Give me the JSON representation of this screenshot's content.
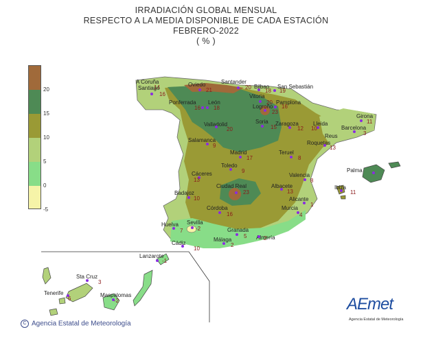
{
  "title": {
    "line1": "IRRADIACIÓN  GLOBAL MENSUAL",
    "line2": "RESPECTO  A LA MEDIA DISPONIBLE DE CADA ESTACIÓN",
    "line3": "FEBRERO-2022",
    "line4": "( % )"
  },
  "legend": {
    "ticks": [
      "20",
      "15",
      "10",
      "5",
      "0",
      "-5"
    ],
    "colors": {
      "above_20": "#a06a3a",
      "15_20": "#4e8a55",
      "10_15": "#9a9a35",
      "5_10": "#b2d17a",
      "0_5": "#88dd88",
      "below_0": "#f6f4a8"
    }
  },
  "stations": [
    {
      "name": "A Coruña",
      "value": "14"
    },
    {
      "name": "Santiago",
      "value": "16"
    },
    {
      "name": "Oviedo",
      "value": "21"
    },
    {
      "name": "Santander",
      "value": "20"
    },
    {
      "name": "Bilbao",
      "value": "18"
    },
    {
      "name": "San Sebastián",
      "value": "19"
    },
    {
      "name": "Vitoria",
      "value": "20"
    },
    {
      "name": "Pamplona",
      "value": "16"
    },
    {
      "name": "Logroño",
      "value": "23"
    },
    {
      "name": "Ponferrada",
      "value": "16"
    },
    {
      "name": "León",
      "value": "18"
    },
    {
      "name": "Soria",
      "value": "15"
    },
    {
      "name": "Zaragoza",
      "value": "12"
    },
    {
      "name": "Lleida",
      "value": "10"
    },
    {
      "name": "Girona",
      "value": "11"
    },
    {
      "name": "Barcelona",
      "value": "3"
    },
    {
      "name": "Reus",
      "value": ""
    },
    {
      "name": "Roquetas",
      "value": "13"
    },
    {
      "name": "Valladolid",
      "value": "20"
    },
    {
      "name": "Salamanca",
      "value": "9"
    },
    {
      "name": "Madrid",
      "value": "17"
    },
    {
      "name": "Teruel",
      "value": "8"
    },
    {
      "name": "Toledo",
      "value": "9"
    },
    {
      "name": "Palma",
      "value": ""
    },
    {
      "name": "Cáceres",
      "value": "13"
    },
    {
      "name": "Ciudad Real",
      "value": "23"
    },
    {
      "name": "Albacete",
      "value": "13"
    },
    {
      "name": "Valencia",
      "value": "8"
    },
    {
      "name": "Ibiza",
      "value": "11"
    },
    {
      "name": "Badajoz",
      "value": "10"
    },
    {
      "name": "Alicante",
      "value": "1"
    },
    {
      "name": "Córdoba",
      "value": "16"
    },
    {
      "name": "Murcia",
      "value": "4"
    },
    {
      "name": "Huelva",
      "value": "7"
    },
    {
      "name": "Sevilla",
      "value": "-2"
    },
    {
      "name": "Granada",
      "value": "5"
    },
    {
      "name": "Almería",
      "value": "2"
    },
    {
      "name": "Cádiz",
      "value": "10"
    },
    {
      "name": "Málaga",
      "value": "2"
    },
    {
      "name": "Lanzarote",
      "value": "-1"
    },
    {
      "name": "Sta Cruz",
      "value": "3"
    },
    {
      "name": "Tenerife",
      "value": "6"
    },
    {
      "name": "Maspalomas",
      "value": "-2"
    }
  ],
  "footer": {
    "credit": "Agencia Estatal de Meteorología",
    "copyright_symbol": "C"
  },
  "logo": {
    "text": "AEmet",
    "subtitle": "Agencia Estatal de Meteorología"
  }
}
